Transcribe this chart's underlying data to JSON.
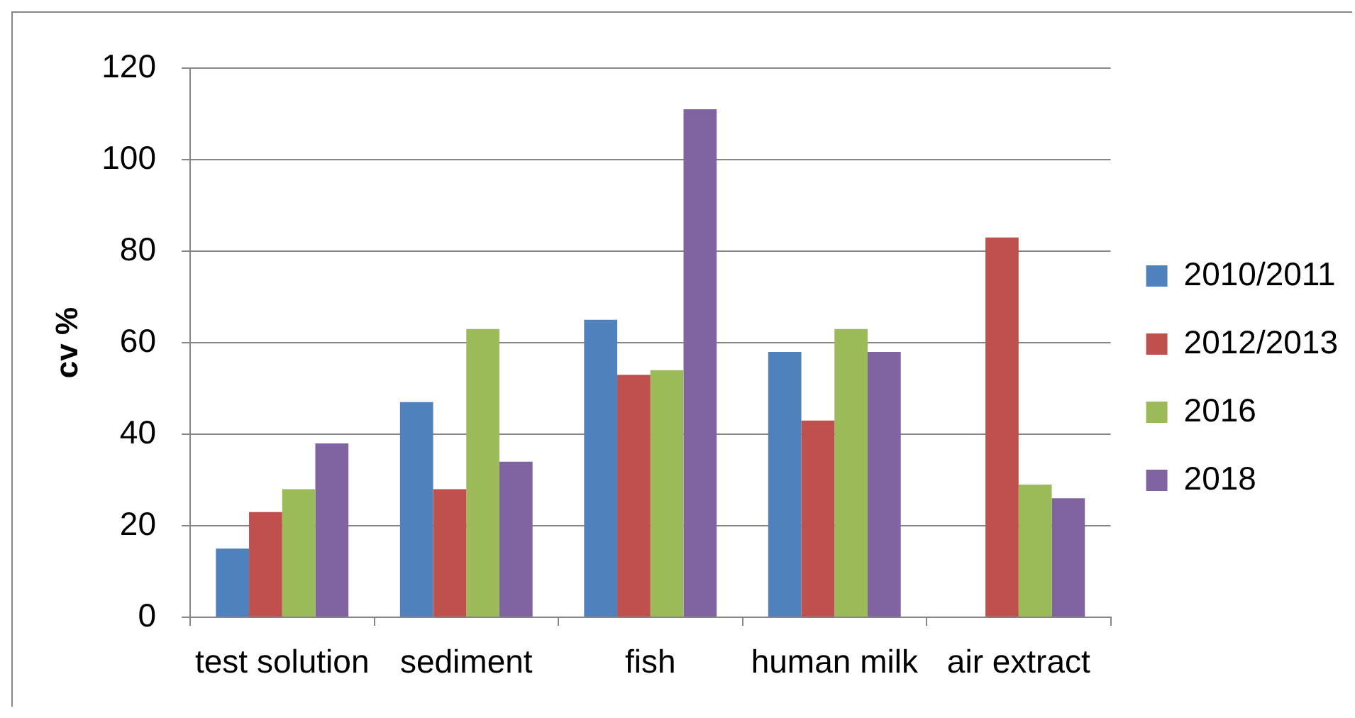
{
  "chart_data": {
    "type": "bar",
    "categories": [
      "test solution",
      "sediment",
      "fish",
      "human milk",
      "air extract"
    ],
    "series": [
      {
        "name": "2010/2011",
        "color": "#4f81bd",
        "values": [
          15,
          47,
          65,
          58,
          null
        ]
      },
      {
        "name": "2012/2013",
        "color": "#c0504d",
        "values": [
          23,
          28,
          53,
          43,
          83
        ]
      },
      {
        "name": "2016",
        "color": "#9bbb59",
        "values": [
          28,
          63,
          54,
          63,
          29
        ]
      },
      {
        "name": "2018",
        "color": "#8064a2",
        "values": [
          38,
          34,
          111,
          58,
          26
        ]
      }
    ],
    "ylabel": "cv %",
    "ylim": [
      0,
      120
    ],
    "yticks": [
      0,
      20,
      40,
      60,
      80,
      100,
      120
    ],
    "grid": "y",
    "legend": "right"
  }
}
